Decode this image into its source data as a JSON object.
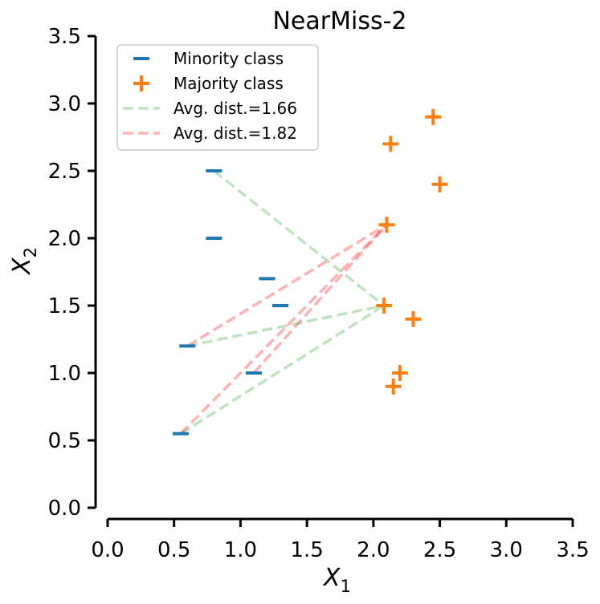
{
  "chart_data": {
    "type": "scatter",
    "title": "NearMiss-2",
    "xlabel": "X",
    "xlabel_sub": "1",
    "ylabel": "X",
    "ylabel_sub": "2",
    "xlim": [
      0.0,
      3.5
    ],
    "ylim": [
      0.0,
      3.5
    ],
    "xticks": [
      "0.0",
      "0.5",
      "1.0",
      "1.5",
      "2.0",
      "2.5",
      "3.0",
      "3.5"
    ],
    "yticks": [
      "0.0",
      "0.5",
      "1.0",
      "1.5",
      "2.0",
      "2.5",
      "3.0",
      "3.5"
    ],
    "grid": false,
    "legend_position": "top-left",
    "series": [
      {
        "name": "Minority class",
        "marker": "_",
        "color": "#1f77b4",
        "points": [
          [
            0.8,
            2.5
          ],
          [
            0.8,
            2.0
          ],
          [
            1.2,
            1.7
          ],
          [
            1.3,
            1.5
          ],
          [
            1.1,
            1.0
          ],
          [
            0.6,
            1.2
          ],
          [
            0.55,
            0.55
          ]
        ]
      },
      {
        "name": "Majority class",
        "marker": "+",
        "color": "#ff7f0e",
        "points": [
          [
            2.45,
            2.9
          ],
          [
            2.13,
            2.7
          ],
          [
            2.5,
            2.4
          ],
          [
            2.1,
            2.1
          ],
          [
            2.08,
            1.5
          ],
          [
            2.3,
            1.4
          ],
          [
            2.2,
            1.0
          ],
          [
            2.15,
            0.9
          ]
        ]
      }
    ],
    "line_groups": [
      {
        "name": "Avg. dist.=1.66",
        "color": "#2ca02c",
        "target": [
          2.08,
          1.5
        ],
        "sources": [
          [
            0.8,
            2.5
          ],
          [
            0.6,
            1.2
          ],
          [
            0.55,
            0.55
          ]
        ]
      },
      {
        "name": "Avg. dist.=1.82",
        "color": "#ff0000",
        "target": [
          2.1,
          2.1
        ],
        "sources": [
          [
            0.6,
            1.2
          ],
          [
            0.55,
            0.55
          ],
          [
            1.1,
            1.0
          ]
        ]
      }
    ]
  }
}
